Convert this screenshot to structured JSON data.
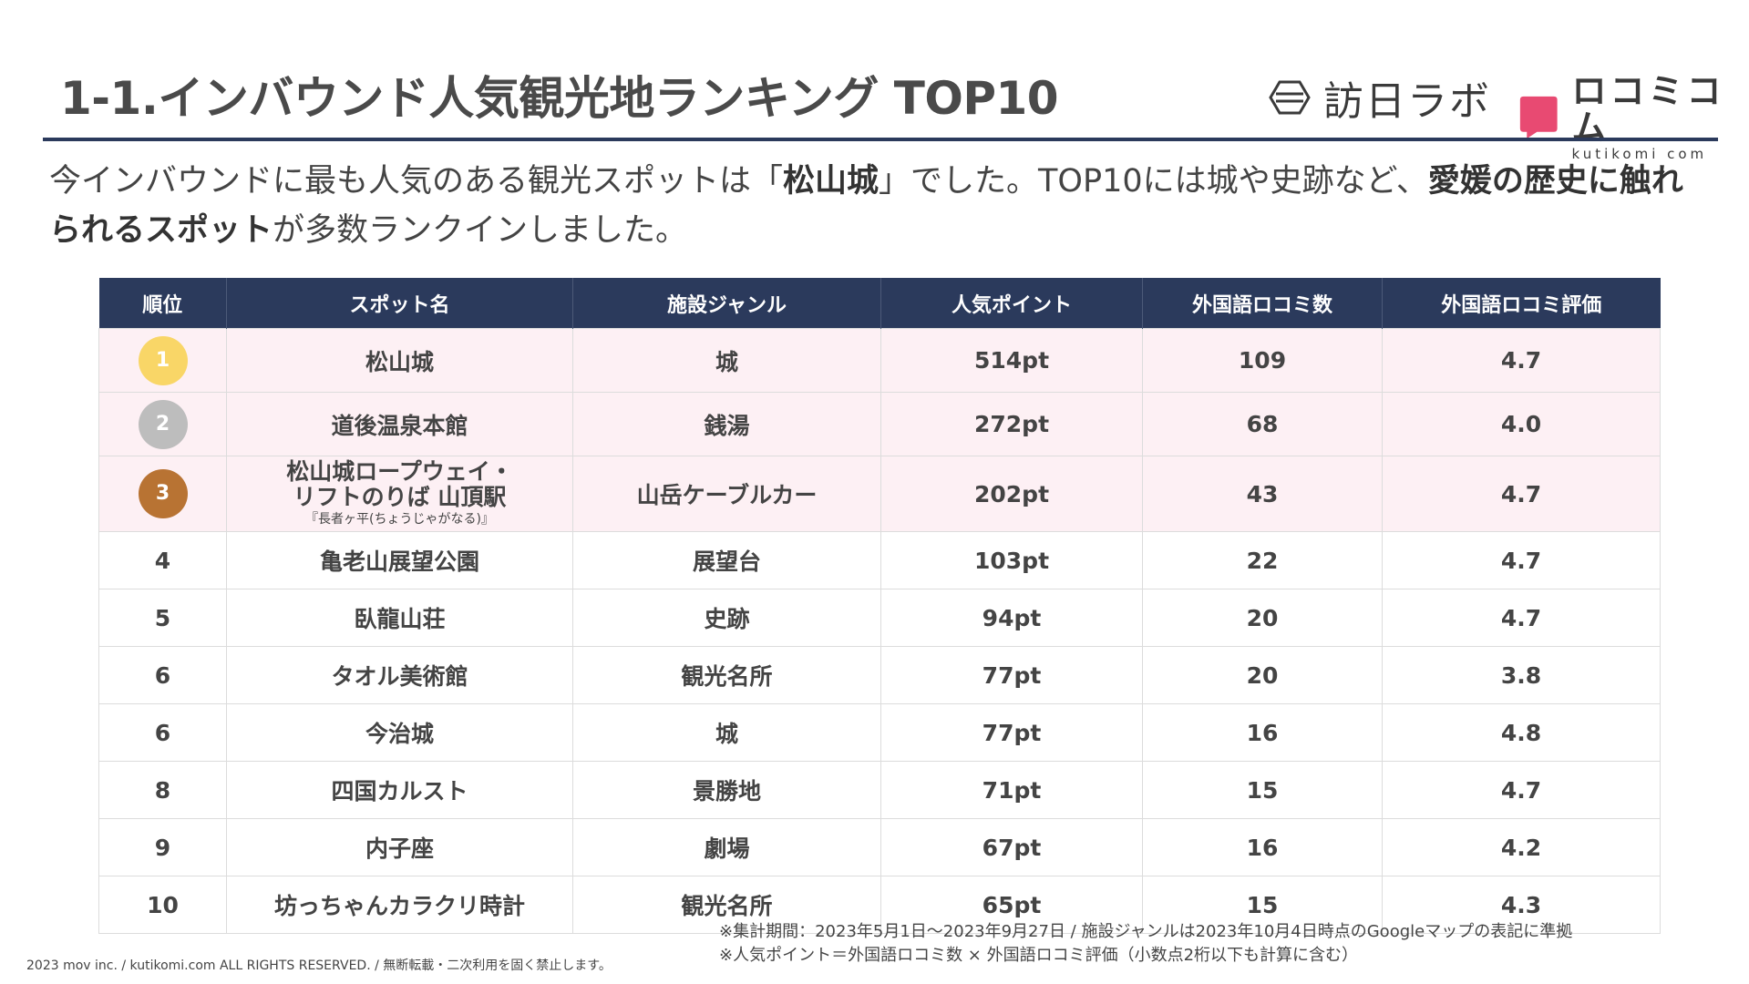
{
  "title": "1-1.インバウンド人気観光地ランキング TOP10",
  "logos": {
    "houjin_text": "訪日ラボ",
    "kutikomi_jp": "ロコミコム",
    "kutikomi_en": "kutikomi com"
  },
  "lead": {
    "p1": "今インバウンドに最も人気のある観光スポットは「",
    "b1": "松山城",
    "p2": "」でした。TOP10には城や史跡など、",
    "b2": "愛媛の歴史に触れられるスポット",
    "p3": "が多数ランクインしました。"
  },
  "colors": {
    "header": "#2b3a5c",
    "top_row_bg": "#fdf0f4",
    "gold": "#f9d667",
    "silver": "#bdbdbd",
    "bronze": "#b87333"
  },
  "table": {
    "headers": [
      "順位",
      "スポット名",
      "施設ジャンル",
      "人気ポイント",
      "外国語ロコミ数",
      "外国語ロコミ評価"
    ],
    "rows": [
      {
        "rank": "1",
        "name": "松山城",
        "genre": "城",
        "points": "514pt",
        "count": "109",
        "rating": "4.7"
      },
      {
        "rank": "2",
        "name": "道後温泉本館",
        "genre": "銭湯",
        "points": "272pt",
        "count": "68",
        "rating": "4.0"
      },
      {
        "rank": "3",
        "name_l1": "松山城ロープウェイ・",
        "name_l2": "リフトのりば 山頂駅",
        "name_l3": "『長者ヶ平(ちょうじゃがなる)』",
        "genre": "山岳ケーブルカー",
        "points": "202pt",
        "count": "43",
        "rating": "4.7"
      },
      {
        "rank": "4",
        "name": "亀老山展望公園",
        "genre": "展望台",
        "points": "103pt",
        "count": "22",
        "rating": "4.7"
      },
      {
        "rank": "5",
        "name": "臥龍山荘",
        "genre": "史跡",
        "points": "94pt",
        "count": "20",
        "rating": "4.7"
      },
      {
        "rank": "6",
        "name": "タオル美術館",
        "genre": "観光名所",
        "points": "77pt",
        "count": "20",
        "rating": "3.8"
      },
      {
        "rank": "6",
        "name": "今治城",
        "genre": "城",
        "points": "77pt",
        "count": "16",
        "rating": "4.8"
      },
      {
        "rank": "8",
        "name": "四国カルスト",
        "genre": "景勝地",
        "points": "71pt",
        "count": "15",
        "rating": "4.7"
      },
      {
        "rank": "9",
        "name": "内子座",
        "genre": "劇場",
        "points": "67pt",
        "count": "16",
        "rating": "4.2"
      },
      {
        "rank": "10",
        "name": "坊っちゃんカラクリ時計",
        "genre": "観光名所",
        "points": "65pt",
        "count": "15",
        "rating": "4.3"
      }
    ]
  },
  "notes": {
    "line1": "※集計期間：2023年5月1日～2023年9月27日 / 施設ジャンルは2023年10月4日時点のGoogleマップの表記に準拠",
    "line2": "※人気ポイント＝外国語ロコミ数 × 外国語ロコミ評価（小数点2桁以下も計算に含む）"
  },
  "copyright": "2023 mov inc. / kutikomi.com ALL RIGHTS RESERVED. / 無断転載・二次利用を固く禁止します。"
}
